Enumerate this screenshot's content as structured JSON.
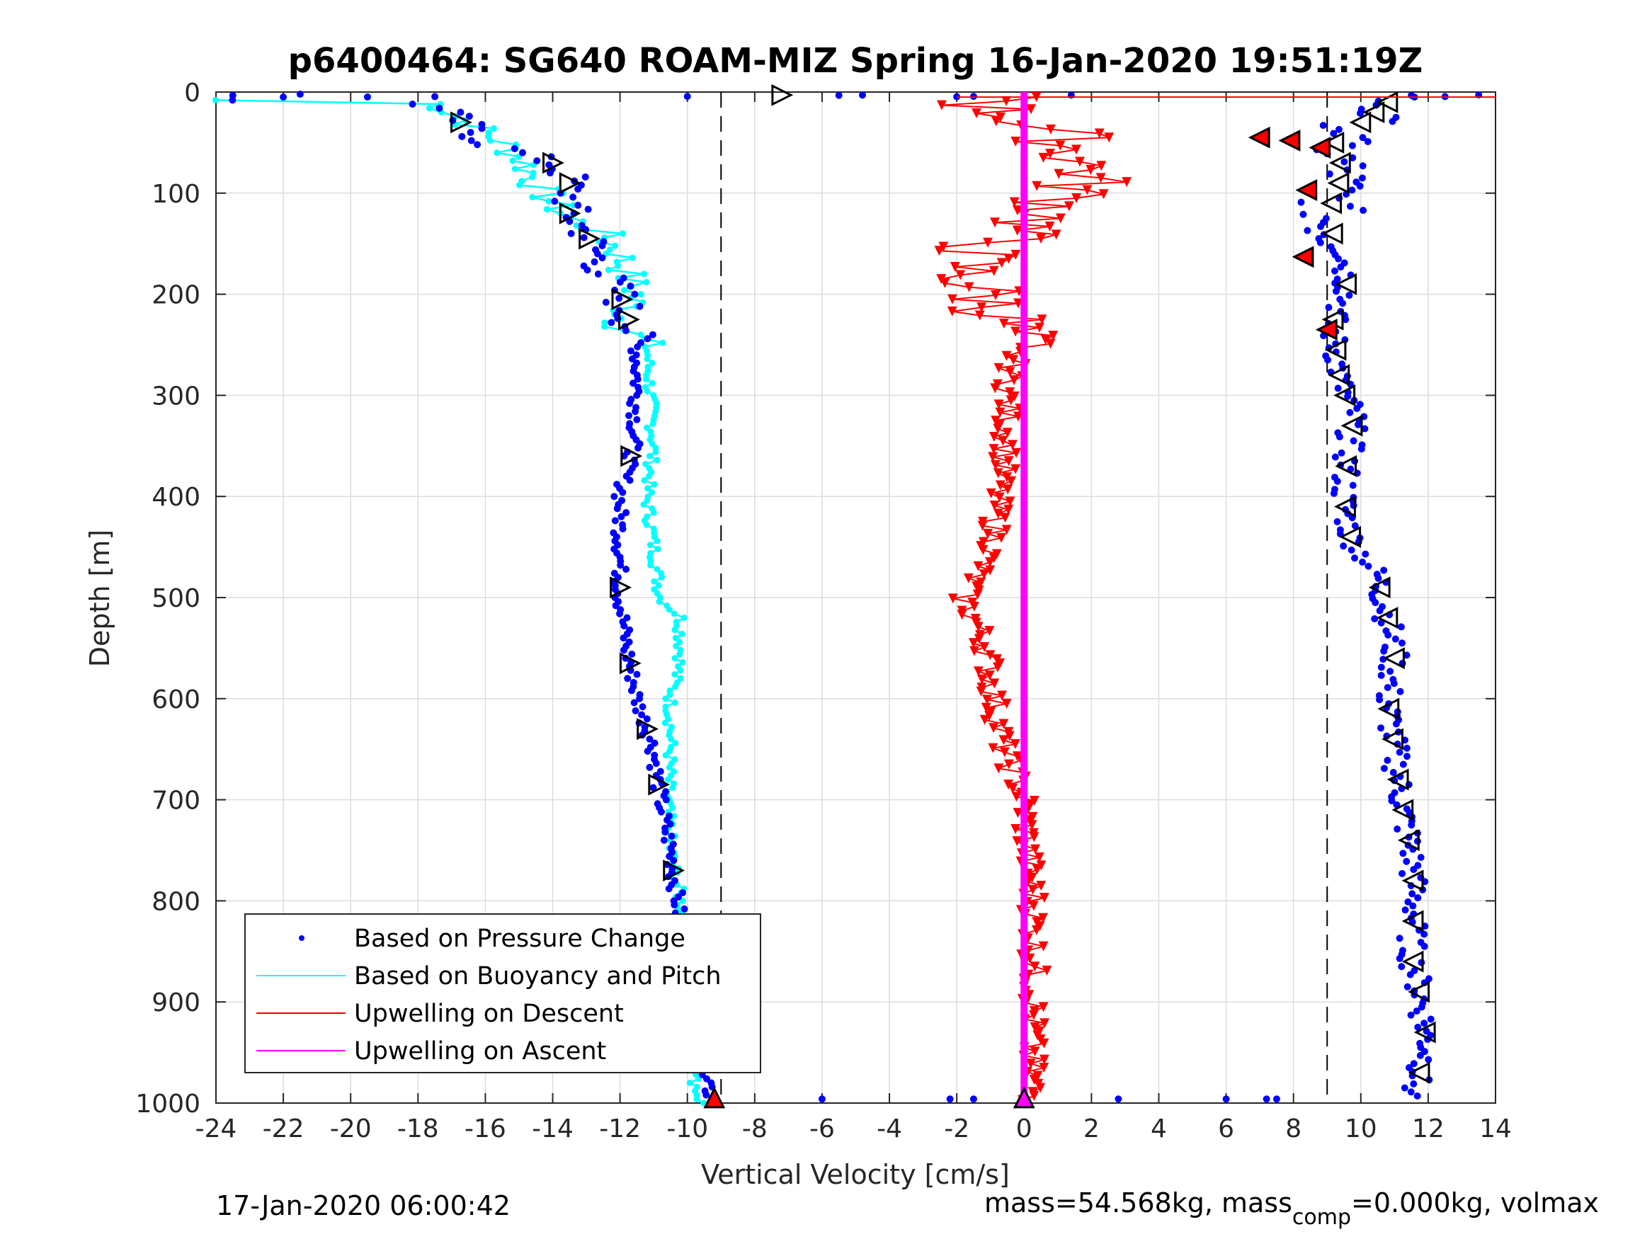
{
  "chart_data": {
    "type": "scatter",
    "title": "p6400464: SG640 ROAM-MIZ Spring 16-Jan-2020 19:51:19Z",
    "xlabel": "Vertical Velocity [cm/s]",
    "ylabel": "Depth [m]",
    "xlim": [
      -24,
      14
    ],
    "ylim": [
      0,
      1000
    ],
    "y_reversed": true,
    "grid": true,
    "legend_position": "bottom-left",
    "xticks": [
      "-24",
      "-22",
      "-20",
      "-18",
      "-16",
      "-14",
      "-12",
      "-10",
      "-8",
      "-6",
      "-4",
      "-2",
      "0",
      "2",
      "4",
      "6",
      "8",
      "10",
      "12",
      "14"
    ],
    "yticks": [
      "0",
      "100",
      "200",
      "300",
      "400",
      "500",
      "600",
      "700",
      "800",
      "900",
      "1000"
    ],
    "reference_lines_x": [
      -9,
      9
    ],
    "footer_left": "17-Jan-2020 06:00:42",
    "footer_right": {
      "pre": "mass=54.568kg, mass",
      "sub": "comp",
      "post": "=0.000kg, volmax"
    },
    "series": [
      {
        "name": "Based on Pressure Change",
        "color": "#0000ff",
        "marker": "dot",
        "descent_profile": [
          [
            -23.5,
            8
          ],
          [
            -18,
            10
          ],
          [
            -17.2,
            20
          ],
          [
            -16.5,
            35
          ],
          [
            -16,
            50
          ],
          [
            -15,
            60
          ],
          [
            -14,
            70
          ],
          [
            -13.5,
            85
          ],
          [
            -13.5,
            100
          ],
          [
            -13.5,
            120
          ],
          [
            -13,
            140
          ],
          [
            -12.7,
            160
          ],
          [
            -12.5,
            180
          ],
          [
            -12,
            200
          ],
          [
            -11.8,
            220
          ],
          [
            -11.5,
            250
          ],
          [
            -11.5,
            300
          ],
          [
            -11.6,
            350
          ],
          [
            -12,
            400
          ],
          [
            -12,
            450
          ],
          [
            -12,
            500
          ],
          [
            -11.8,
            550
          ],
          [
            -11.5,
            600
          ],
          [
            -11,
            650
          ],
          [
            -10.8,
            700
          ],
          [
            -10.5,
            750
          ],
          [
            -10.3,
            800
          ],
          [
            -10.1,
            850
          ],
          [
            -10,
            900
          ],
          [
            -9.9,
            950
          ],
          [
            -9.2,
            1000
          ]
        ],
        "ascent_profile": [
          [
            11,
            5
          ],
          [
            10,
            30
          ],
          [
            9.2,
            50
          ],
          [
            9.5,
            80
          ],
          [
            9.2,
            100
          ],
          [
            9,
            130
          ],
          [
            9.5,
            160
          ],
          [
            9.6,
            200
          ],
          [
            9.1,
            230
          ],
          [
            9.3,
            260
          ],
          [
            9.4,
            290
          ],
          [
            9.8,
            320
          ],
          [
            9.6,
            360
          ],
          [
            9.5,
            400
          ],
          [
            9.7,
            440
          ],
          [
            10.5,
            480
          ],
          [
            10.8,
            520
          ],
          [
            11,
            560
          ],
          [
            10.8,
            600
          ],
          [
            11,
            650
          ],
          [
            11.2,
            700
          ],
          [
            11.5,
            750
          ],
          [
            11.6,
            800
          ],
          [
            11.5,
            850
          ],
          [
            11.8,
            900
          ],
          [
            12,
            950
          ],
          [
            11.5,
            990
          ]
        ]
      },
      {
        "name": "Based on Buoyancy and Pitch",
        "color": "#00ffff",
        "marker": "line",
        "profile": [
          [
            -24,
            8
          ],
          [
            -17.5,
            10
          ],
          [
            -16.5,
            30
          ],
          [
            -15.5,
            50
          ],
          [
            -14.8,
            70
          ],
          [
            -14.5,
            90
          ],
          [
            -14,
            110
          ],
          [
            -13.5,
            125
          ],
          [
            -12.5,
            140
          ],
          [
            -12,
            160
          ],
          [
            -11.8,
            180
          ],
          [
            -11.5,
            200
          ],
          [
            -12,
            230
          ],
          [
            -11.2,
            250
          ],
          [
            -11.1,
            300
          ],
          [
            -11,
            350
          ],
          [
            -11.2,
            400
          ],
          [
            -11,
            450
          ],
          [
            -10.8,
            500
          ],
          [
            -10.2,
            520
          ],
          [
            -10.2,
            560
          ],
          [
            -10.5,
            600
          ],
          [
            -10.5,
            650
          ],
          [
            -10.6,
            700
          ],
          [
            -10.5,
            750
          ],
          [
            -10.2,
            800
          ],
          [
            -10,
            850
          ],
          [
            -10.2,
            900
          ],
          [
            -10,
            950
          ],
          [
            -9.6,
            1000
          ]
        ]
      },
      {
        "name": "Upwelling on Descent",
        "color": "#ff0000",
        "marker": "triangle-down",
        "profile": [
          [
            -1.5,
            10
          ],
          [
            1,
            40
          ],
          [
            2,
            80
          ],
          [
            0.8,
            120
          ],
          [
            -1.5,
            160
          ],
          [
            -1.8,
            180
          ],
          [
            -0.6,
            220
          ],
          [
            -0.3,
            260
          ],
          [
            -0.5,
            300
          ],
          [
            -0.5,
            350
          ],
          [
            -0.8,
            400
          ],
          [
            -0.9,
            450
          ],
          [
            -1.8,
            500
          ],
          [
            -1.1,
            550
          ],
          [
            -0.9,
            600
          ],
          [
            -0.6,
            650
          ],
          [
            0,
            700
          ],
          [
            0.1,
            750
          ],
          [
            0.3,
            800
          ],
          [
            0.3,
            850
          ],
          [
            0.3,
            900
          ],
          [
            0.2,
            950
          ],
          [
            0.3,
            1000
          ]
        ]
      },
      {
        "name": "Upwelling on Ascent",
        "color": "#ff00ff",
        "marker": "line",
        "profile": [
          [
            0,
            0
          ],
          [
            0,
            1000
          ]
        ]
      }
    ]
  }
}
